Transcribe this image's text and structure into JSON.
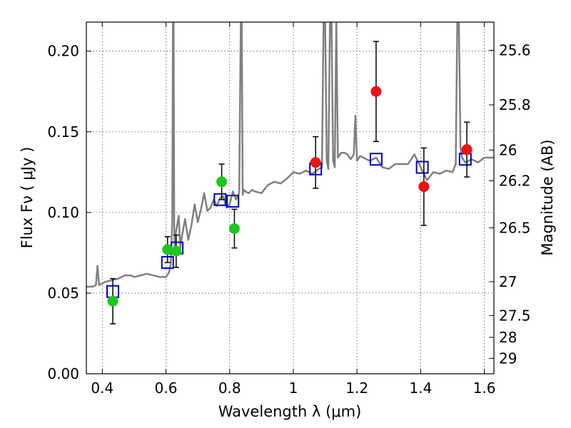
{
  "chart_data": {
    "type": "scatter",
    "xlabel": "Wavelength  λ (μm)",
    "ylabel": "Flux  Fν ( μJy )",
    "ylabel_right": "Magnitude (AB)",
    "xlim": [
      0.35,
      1.63
    ],
    "ylim": [
      0.0,
      0.218
    ],
    "grid": true,
    "x_ticks": [
      0.4,
      0.6,
      0.8,
      1.0,
      1.2,
      1.4,
      1.6
    ],
    "x_tick_labels": [
      "0.4",
      "0.6",
      "0.8",
      "1",
      "1.2",
      "1.4",
      "1.6"
    ],
    "y_ticks": [
      0.0,
      0.05,
      0.1,
      0.15,
      0.2
    ],
    "y_tick_labels": [
      "0.00",
      "0.05",
      "0.10",
      "0.15",
      "0.20"
    ],
    "right_ticks": [
      {
        "label": "25.6",
        "flux": 0.2005
      },
      {
        "label": "25.8",
        "flux": 0.1667
      },
      {
        "label": "26",
        "flux": 0.1387
      },
      {
        "label": "26.2",
        "flux": 0.1196
      },
      {
        "label": "26.5",
        "flux": 0.0905
      },
      {
        "label": "27",
        "flux": 0.0571
      },
      {
        "label": "27.5",
        "flux": 0.0361
      },
      {
        "label": "28",
        "flux": 0.0226
      },
      {
        "label": "29",
        "flux": 0.0096
      }
    ],
    "series": [
      {
        "kind": "line",
        "color": "#808080",
        "x": [
          0.35,
          0.37,
          0.38,
          0.385,
          0.39,
          0.41,
          0.43,
          0.45,
          0.47,
          0.49,
          0.5,
          0.52,
          0.54,
          0.56,
          0.58,
          0.6,
          0.61,
          0.615,
          0.62,
          0.622,
          0.624,
          0.626,
          0.628,
          0.63,
          0.64,
          0.645,
          0.65,
          0.66,
          0.67,
          0.68,
          0.69,
          0.7,
          0.71,
          0.72,
          0.73,
          0.74,
          0.75,
          0.76,
          0.77,
          0.78,
          0.79,
          0.8,
          0.81,
          0.82,
          0.83,
          0.835,
          0.838,
          0.841,
          0.845,
          0.85,
          0.86,
          0.87,
          0.88,
          0.9,
          0.92,
          0.94,
          0.96,
          0.98,
          1.0,
          1.02,
          1.04,
          1.06,
          1.08,
          1.09,
          1.095,
          1.1,
          1.105,
          1.11,
          1.115,
          1.12,
          1.125,
          1.13,
          1.135,
          1.14,
          1.15,
          1.16,
          1.17,
          1.18,
          1.19,
          1.195,
          1.2,
          1.21,
          1.22,
          1.24,
          1.26,
          1.28,
          1.3,
          1.32,
          1.34,
          1.36,
          1.38,
          1.4,
          1.42,
          1.44,
          1.46,
          1.48,
          1.5,
          1.51,
          1.515,
          1.52,
          1.525,
          1.53,
          1.54,
          1.56,
          1.58,
          1.6,
          1.63
        ],
        "y": [
          0.054,
          0.054,
          0.055,
          0.067,
          0.055,
          0.057,
          0.058,
          0.059,
          0.061,
          0.061,
          0.06,
          0.061,
          0.062,
          0.061,
          0.06,
          0.06,
          0.063,
          0.068,
          0.095,
          0.218,
          0.218,
          0.09,
          0.075,
          0.086,
          0.098,
          0.078,
          0.085,
          0.096,
          0.083,
          0.092,
          0.105,
          0.094,
          0.102,
          0.112,
          0.101,
          0.103,
          0.108,
          0.104,
          0.109,
          0.11,
          0.103,
          0.105,
          0.113,
          0.108,
          0.112,
          0.218,
          0.218,
          0.111,
          0.114,
          0.113,
          0.112,
          0.114,
          0.113,
          0.112,
          0.117,
          0.119,
          0.118,
          0.121,
          0.125,
          0.124,
          0.126,
          0.124,
          0.127,
          0.128,
          0.218,
          0.218,
          0.132,
          0.127,
          0.218,
          0.218,
          0.132,
          0.128,
          0.218,
          0.134,
          0.137,
          0.137,
          0.136,
          0.133,
          0.136,
          0.16,
          0.132,
          0.135,
          0.134,
          0.132,
          0.134,
          0.128,
          0.127,
          0.13,
          0.13,
          0.13,
          0.136,
          0.128,
          0.12,
          0.125,
          0.124,
          0.126,
          0.125,
          0.13,
          0.218,
          0.218,
          0.14,
          0.134,
          0.131,
          0.133,
          0.131,
          0.134,
          0.134
        ]
      },
      {
        "kind": "open-square",
        "color": "#0000cc",
        "x": [
          0.433,
          0.605,
          0.635,
          0.77,
          0.81,
          1.07,
          1.26,
          1.405,
          1.54
        ],
        "y": [
          0.051,
          0.069,
          0.078,
          0.108,
          0.107,
          0.127,
          0.133,
          0.128,
          0.133
        ]
      },
      {
        "kind": "filled-circle",
        "color": "#1ec71e",
        "x": [
          0.433,
          0.605,
          0.632,
          0.775,
          0.815
        ],
        "y": [
          0.045,
          0.077,
          0.076,
          0.119,
          0.09
        ],
        "yerr": [
          0.014,
          0.008,
          0.01,
          0.011,
          0.012
        ]
      },
      {
        "kind": "filled-circle",
        "color": "#ee1111",
        "x": [
          1.07,
          1.26,
          1.41,
          1.545
        ],
        "y": [
          0.131,
          0.175,
          0.116,
          0.139
        ],
        "yerr": [
          0.016,
          0.031,
          0.024,
          0.017
        ]
      }
    ]
  }
}
